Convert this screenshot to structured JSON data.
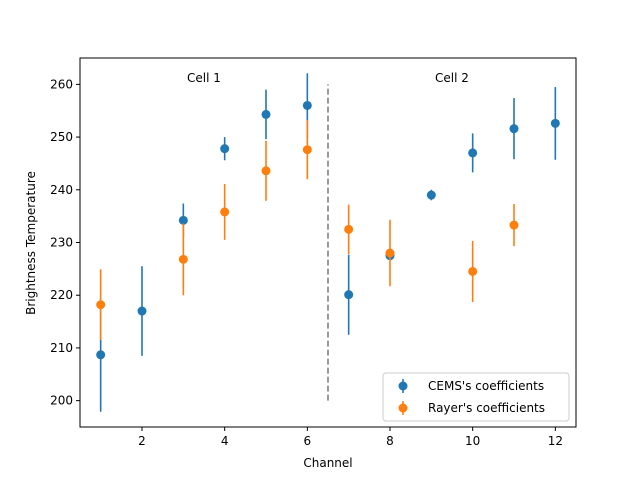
{
  "chart_data": {
    "type": "scatter",
    "title": "",
    "xlabel": "Channel",
    "ylabel": "Brightness Temperature",
    "xlim": [
      0.5,
      12.5
    ],
    "ylim": [
      195,
      265
    ],
    "xticks": [
      2,
      4,
      6,
      8,
      10,
      12
    ],
    "yticks": [
      200,
      210,
      220,
      230,
      240,
      250,
      260
    ],
    "grid": false,
    "legend_position": "lower-right",
    "series": [
      {
        "name": "CEMS's coefficients",
        "color": "#1f77b4",
        "x": [
          1,
          2,
          3,
          4,
          5,
          6,
          7,
          8,
          9,
          10,
          11,
          12
        ],
        "y": [
          208.7,
          217.0,
          234.2,
          247.8,
          254.3,
          256.0,
          220.1,
          227.5,
          239.0,
          247.0,
          251.6,
          252.6
        ],
        "yerr": [
          10.8,
          8.5,
          3.2,
          2.2,
          4.7,
          6.1,
          7.6,
          0.6,
          1.0,
          3.7,
          5.8,
          6.9
        ]
      },
      {
        "name": "Rayer's coefficients",
        "color": "#ff7f0e",
        "x": [
          1,
          3,
          4,
          5,
          6,
          7,
          8,
          10,
          11
        ],
        "y": [
          218.2,
          226.8,
          235.8,
          243.6,
          247.6,
          232.5,
          228.0,
          224.5,
          233.3
        ],
        "yerr": [
          6.7,
          6.8,
          5.3,
          5.7,
          5.6,
          4.7,
          6.3,
          5.8,
          4.0
        ]
      }
    ],
    "divider": {
      "x": 6.5,
      "y_range": [
        200,
        260
      ],
      "style": "dashed",
      "color": "#808080"
    },
    "annotations": [
      {
        "text": "Cell 1",
        "x": 3.5,
        "y": 261
      },
      {
        "text": "Cell 2",
        "x": 9.5,
        "y": 261
      }
    ]
  }
}
